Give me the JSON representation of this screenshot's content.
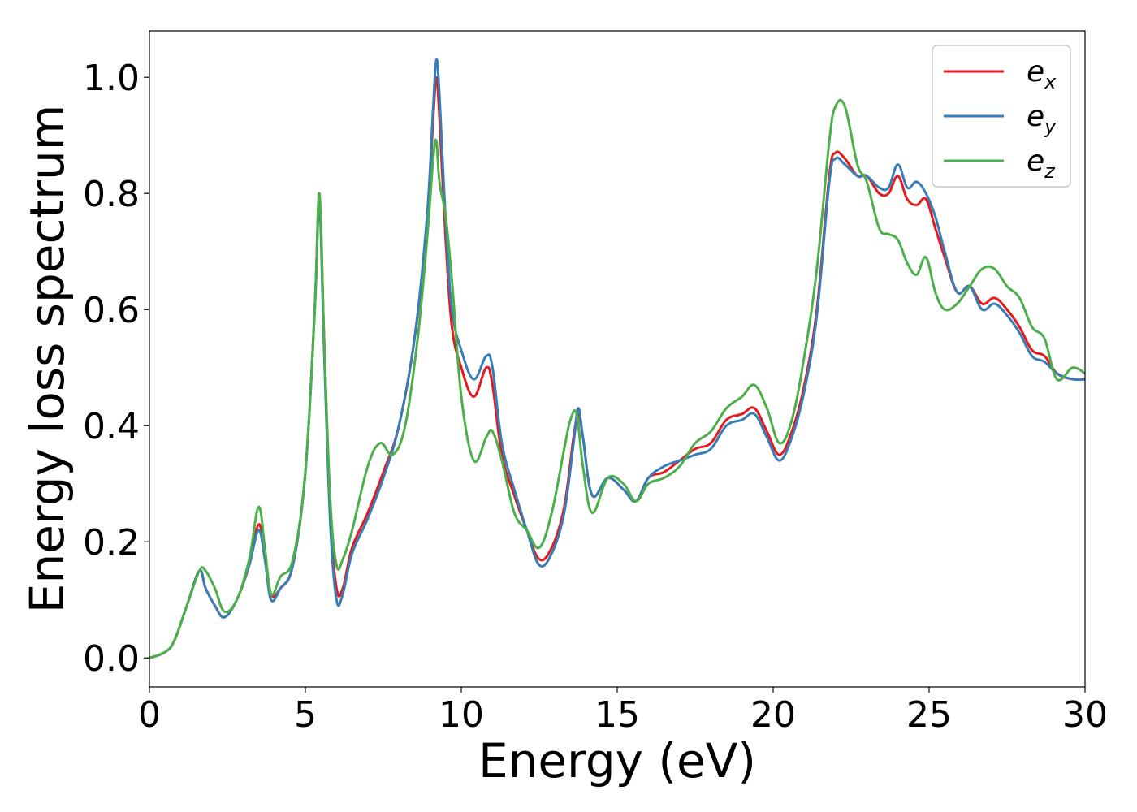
{
  "chart_data": {
    "type": "line",
    "title": "",
    "xlabel": "Energy (eV)",
    "ylabel": "Energy loss spectrum",
    "xlim": [
      0,
      30
    ],
    "ylim": [
      -0.05,
      1.08
    ],
    "xticks": [
      0,
      5,
      10,
      15,
      20,
      25,
      30
    ],
    "xtick_labels": [
      "0",
      "5",
      "10",
      "15",
      "20",
      "25",
      "30"
    ],
    "yticks": [
      0.0,
      0.2,
      0.4,
      0.6,
      0.8,
      1.0
    ],
    "ytick_labels": [
      "0.0",
      "0.2",
      "0.4",
      "0.6",
      "0.8",
      "1.0"
    ],
    "grid": false,
    "legend_position": "top-right",
    "series": [
      {
        "name": "e_x",
        "legend_base": "e",
        "legend_sub": "x",
        "color": "#e41a1c",
        "x": [
          0.0,
          0.5,
          0.8,
          1.2,
          1.6,
          1.8,
          2.1,
          2.4,
          2.8,
          3.2,
          3.5,
          3.7,
          3.9,
          4.2,
          4.6,
          5.0,
          5.3,
          5.45,
          5.6,
          5.8,
          6.0,
          6.2,
          6.5,
          7.0,
          7.5,
          8.0,
          8.5,
          8.9,
          9.1,
          9.2,
          9.3,
          9.5,
          9.7,
          10.0,
          10.4,
          10.8,
          11.0,
          11.3,
          11.7,
          12.1,
          12.5,
          12.9,
          13.3,
          13.6,
          13.75,
          13.9,
          14.2,
          14.7,
          15.2,
          15.6,
          16.0,
          16.5,
          17.0,
          17.5,
          18.0,
          18.5,
          19.0,
          19.4,
          19.8,
          20.2,
          20.6,
          21.0,
          21.4,
          21.8,
          22.0,
          22.3,
          22.7,
          23.0,
          23.4,
          23.7,
          24.0,
          24.3,
          24.6,
          24.9,
          25.2,
          25.5,
          25.9,
          26.3,
          26.7,
          27.1,
          27.5,
          27.9,
          28.3,
          28.7,
          29.1,
          29.6,
          30.0
        ],
        "y": [
          0.0,
          0.01,
          0.03,
          0.09,
          0.15,
          0.12,
          0.09,
          0.07,
          0.1,
          0.16,
          0.23,
          0.18,
          0.11,
          0.12,
          0.16,
          0.32,
          0.6,
          0.79,
          0.55,
          0.25,
          0.12,
          0.12,
          0.19,
          0.25,
          0.32,
          0.4,
          0.55,
          0.75,
          0.93,
          1.0,
          0.93,
          0.72,
          0.57,
          0.5,
          0.45,
          0.5,
          0.47,
          0.35,
          0.28,
          0.22,
          0.17,
          0.19,
          0.26,
          0.38,
          0.42,
          0.38,
          0.28,
          0.31,
          0.29,
          0.27,
          0.31,
          0.32,
          0.34,
          0.36,
          0.37,
          0.41,
          0.42,
          0.43,
          0.39,
          0.35,
          0.39,
          0.47,
          0.6,
          0.83,
          0.87,
          0.86,
          0.83,
          0.83,
          0.8,
          0.8,
          0.83,
          0.79,
          0.78,
          0.79,
          0.74,
          0.69,
          0.63,
          0.64,
          0.61,
          0.62,
          0.6,
          0.57,
          0.53,
          0.52,
          0.49,
          0.48,
          0.48
        ]
      },
      {
        "name": "e_y",
        "legend_base": "e",
        "legend_sub": "y",
        "color": "#377eb8",
        "x": [
          0.0,
          0.5,
          0.8,
          1.2,
          1.6,
          1.8,
          2.1,
          2.4,
          2.8,
          3.2,
          3.5,
          3.7,
          3.9,
          4.2,
          4.6,
          5.0,
          5.3,
          5.45,
          5.6,
          5.8,
          6.0,
          6.2,
          6.5,
          7.0,
          7.5,
          8.0,
          8.5,
          8.9,
          9.1,
          9.2,
          9.3,
          9.5,
          9.7,
          10.0,
          10.4,
          10.8,
          11.0,
          11.3,
          11.7,
          12.1,
          12.5,
          12.9,
          13.3,
          13.6,
          13.75,
          13.9,
          14.2,
          14.7,
          15.2,
          15.6,
          16.0,
          16.5,
          17.0,
          17.5,
          18.0,
          18.5,
          19.0,
          19.4,
          19.8,
          20.2,
          20.6,
          21.0,
          21.4,
          21.8,
          22.0,
          22.3,
          22.7,
          23.0,
          23.4,
          23.7,
          24.0,
          24.3,
          24.6,
          24.9,
          25.2,
          25.5,
          25.9,
          26.3,
          26.7,
          27.1,
          27.5,
          27.9,
          28.3,
          28.7,
          29.1,
          29.6,
          30.0
        ],
        "y": [
          0.0,
          0.01,
          0.03,
          0.09,
          0.15,
          0.12,
          0.09,
          0.07,
          0.1,
          0.16,
          0.22,
          0.17,
          0.1,
          0.12,
          0.16,
          0.32,
          0.6,
          0.78,
          0.53,
          0.23,
          0.1,
          0.11,
          0.18,
          0.24,
          0.31,
          0.4,
          0.55,
          0.76,
          0.95,
          1.03,
          0.97,
          0.75,
          0.6,
          0.53,
          0.48,
          0.52,
          0.5,
          0.37,
          0.29,
          0.22,
          0.16,
          0.18,
          0.25,
          0.37,
          0.43,
          0.38,
          0.28,
          0.31,
          0.29,
          0.27,
          0.31,
          0.33,
          0.34,
          0.35,
          0.36,
          0.4,
          0.41,
          0.42,
          0.38,
          0.34,
          0.38,
          0.46,
          0.59,
          0.82,
          0.86,
          0.85,
          0.83,
          0.83,
          0.81,
          0.81,
          0.85,
          0.81,
          0.82,
          0.8,
          0.76,
          0.7,
          0.63,
          0.64,
          0.6,
          0.61,
          0.59,
          0.56,
          0.52,
          0.51,
          0.49,
          0.48,
          0.48
        ]
      },
      {
        "name": "e_z",
        "legend_base": "e",
        "legend_sub": "z",
        "color": "#4daf4a",
        "x": [
          0.0,
          0.5,
          0.8,
          1.2,
          1.6,
          1.8,
          2.1,
          2.4,
          2.8,
          3.2,
          3.5,
          3.7,
          3.9,
          4.2,
          4.6,
          5.0,
          5.3,
          5.45,
          5.6,
          5.8,
          6.0,
          6.2,
          6.5,
          7.0,
          7.4,
          7.8,
          8.2,
          8.6,
          8.9,
          9.1,
          9.2,
          9.3,
          9.5,
          9.7,
          10.0,
          10.4,
          10.8,
          11.0,
          11.3,
          11.7,
          12.1,
          12.5,
          12.9,
          13.3,
          13.5,
          13.7,
          13.9,
          14.2,
          14.7,
          15.2,
          15.6,
          16.0,
          16.5,
          17.0,
          17.5,
          18.0,
          18.5,
          19.0,
          19.4,
          19.8,
          20.2,
          20.6,
          21.0,
          21.4,
          21.8,
          22.0,
          22.3,
          22.7,
          23.0,
          23.4,
          23.7,
          24.0,
          24.3,
          24.6,
          24.9,
          25.2,
          25.5,
          25.9,
          26.3,
          26.7,
          27.1,
          27.5,
          27.9,
          28.3,
          28.7,
          29.1,
          29.6,
          30.0
        ],
        "y": [
          0.0,
          0.01,
          0.03,
          0.09,
          0.15,
          0.15,
          0.12,
          0.08,
          0.1,
          0.17,
          0.26,
          0.19,
          0.11,
          0.14,
          0.17,
          0.32,
          0.6,
          0.8,
          0.55,
          0.27,
          0.16,
          0.17,
          0.22,
          0.33,
          0.37,
          0.35,
          0.4,
          0.55,
          0.72,
          0.86,
          0.89,
          0.82,
          0.76,
          0.65,
          0.45,
          0.34,
          0.38,
          0.39,
          0.34,
          0.25,
          0.22,
          0.19,
          0.25,
          0.36,
          0.41,
          0.42,
          0.33,
          0.25,
          0.31,
          0.3,
          0.27,
          0.3,
          0.31,
          0.33,
          0.37,
          0.39,
          0.43,
          0.45,
          0.47,
          0.43,
          0.37,
          0.41,
          0.52,
          0.67,
          0.89,
          0.95,
          0.95,
          0.85,
          0.82,
          0.74,
          0.73,
          0.72,
          0.68,
          0.66,
          0.69,
          0.63,
          0.6,
          0.61,
          0.64,
          0.67,
          0.67,
          0.64,
          0.62,
          0.57,
          0.55,
          0.48,
          0.5,
          0.49
        ]
      }
    ]
  }
}
